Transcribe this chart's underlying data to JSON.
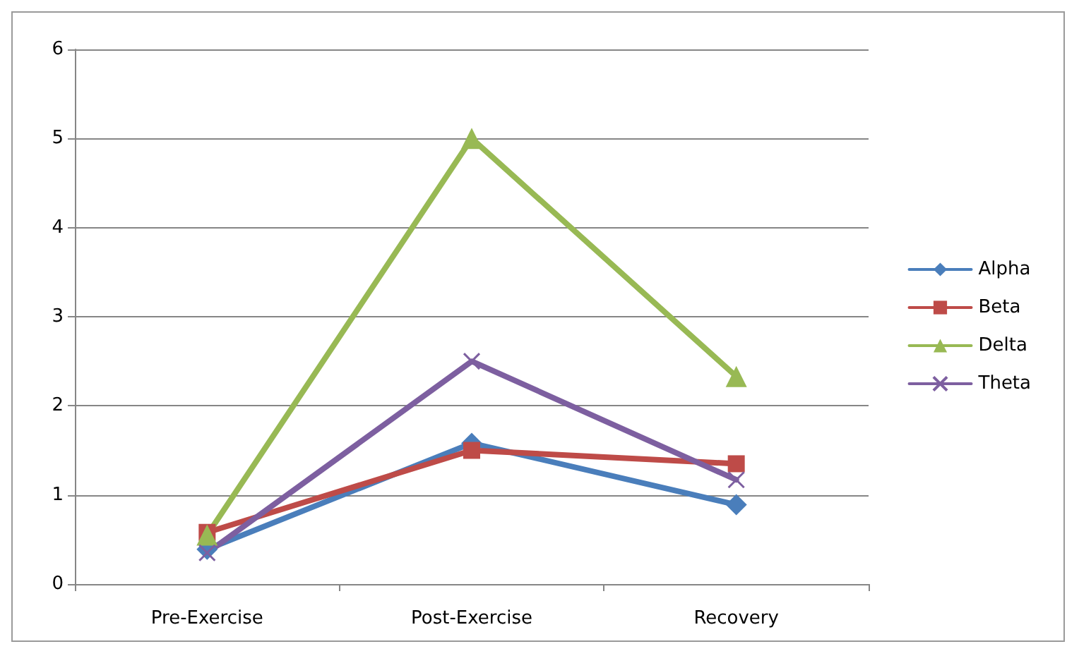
{
  "chart_data": {
    "type": "line",
    "categories": [
      "Pre-Exercise",
      "Post-Exercise",
      "Recovery"
    ],
    "ylim": [
      0,
      6
    ],
    "yticks": [
      0,
      1,
      2,
      3,
      4,
      5,
      6
    ],
    "grid": "y",
    "legend": "right",
    "line_style": "solid",
    "series": [
      {
        "name": "Alpha",
        "color": "#4a7ebb",
        "marker": "diamond",
        "values": [
          0.39,
          1.58,
          0.89
        ]
      },
      {
        "name": "Beta",
        "color": "#be4b48",
        "marker": "square",
        "values": [
          0.58,
          1.5,
          1.35
        ]
      },
      {
        "name": "Delta",
        "color": "#98b954",
        "marker": "triangle",
        "values": [
          0.55,
          5.0,
          2.33
        ]
      },
      {
        "name": "Theta",
        "color": "#7d5fa0",
        "marker": "cross",
        "values": [
          0.35,
          2.5,
          1.17
        ]
      }
    ]
  }
}
